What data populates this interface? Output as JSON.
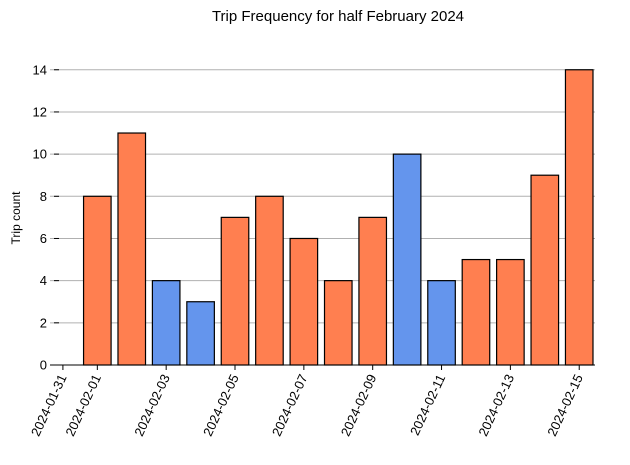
{
  "chart_data": {
    "type": "bar",
    "title": "Trip Frequency for half February 2024",
    "y_label": "Trip count",
    "x": [
      "2024-02-01",
      "2024-02-02",
      "2024-02-03",
      "2024-02-04",
      "2024-02-05",
      "2024-02-06",
      "2024-02-07",
      "2024-02-08",
      "2024-02-09",
      "2024-02-10",
      "2024-02-11",
      "2024-02-12",
      "2024-02-13",
      "2024-02-14",
      "2024-02-15"
    ],
    "values": [
      8,
      11,
      4,
      3,
      7,
      8,
      6,
      4,
      7,
      10,
      4,
      5,
      5,
      9,
      14
    ],
    "colors": [
      "#ff7f50",
      "#ff7f50",
      "#6495ed",
      "#6495ed",
      "#ff7f50",
      "#ff7f50",
      "#ff7f50",
      "#ff7f50",
      "#ff7f50",
      "#6495ed",
      "#6495ed",
      "#ff7f50",
      "#ff7f50",
      "#ff7f50",
      "#ff7f50"
    ],
    "xlim": [
      "2024-01-30T15:00:00Z",
      "2024-02-15T11:00:00Z"
    ],
    "xticks": [
      "2024-01-31",
      "2024-02-01",
      "2024-02-03",
      "2024-02-05",
      "2024-02-07",
      "2024-02-09",
      "2024-02-11",
      "2024-02-13",
      "2024-02-15"
    ],
    "ylim": [
      0,
      14.7
    ],
    "yticks": [
      0,
      2,
      4,
      6,
      8,
      10,
      12,
      14
    ],
    "grid": true
  }
}
